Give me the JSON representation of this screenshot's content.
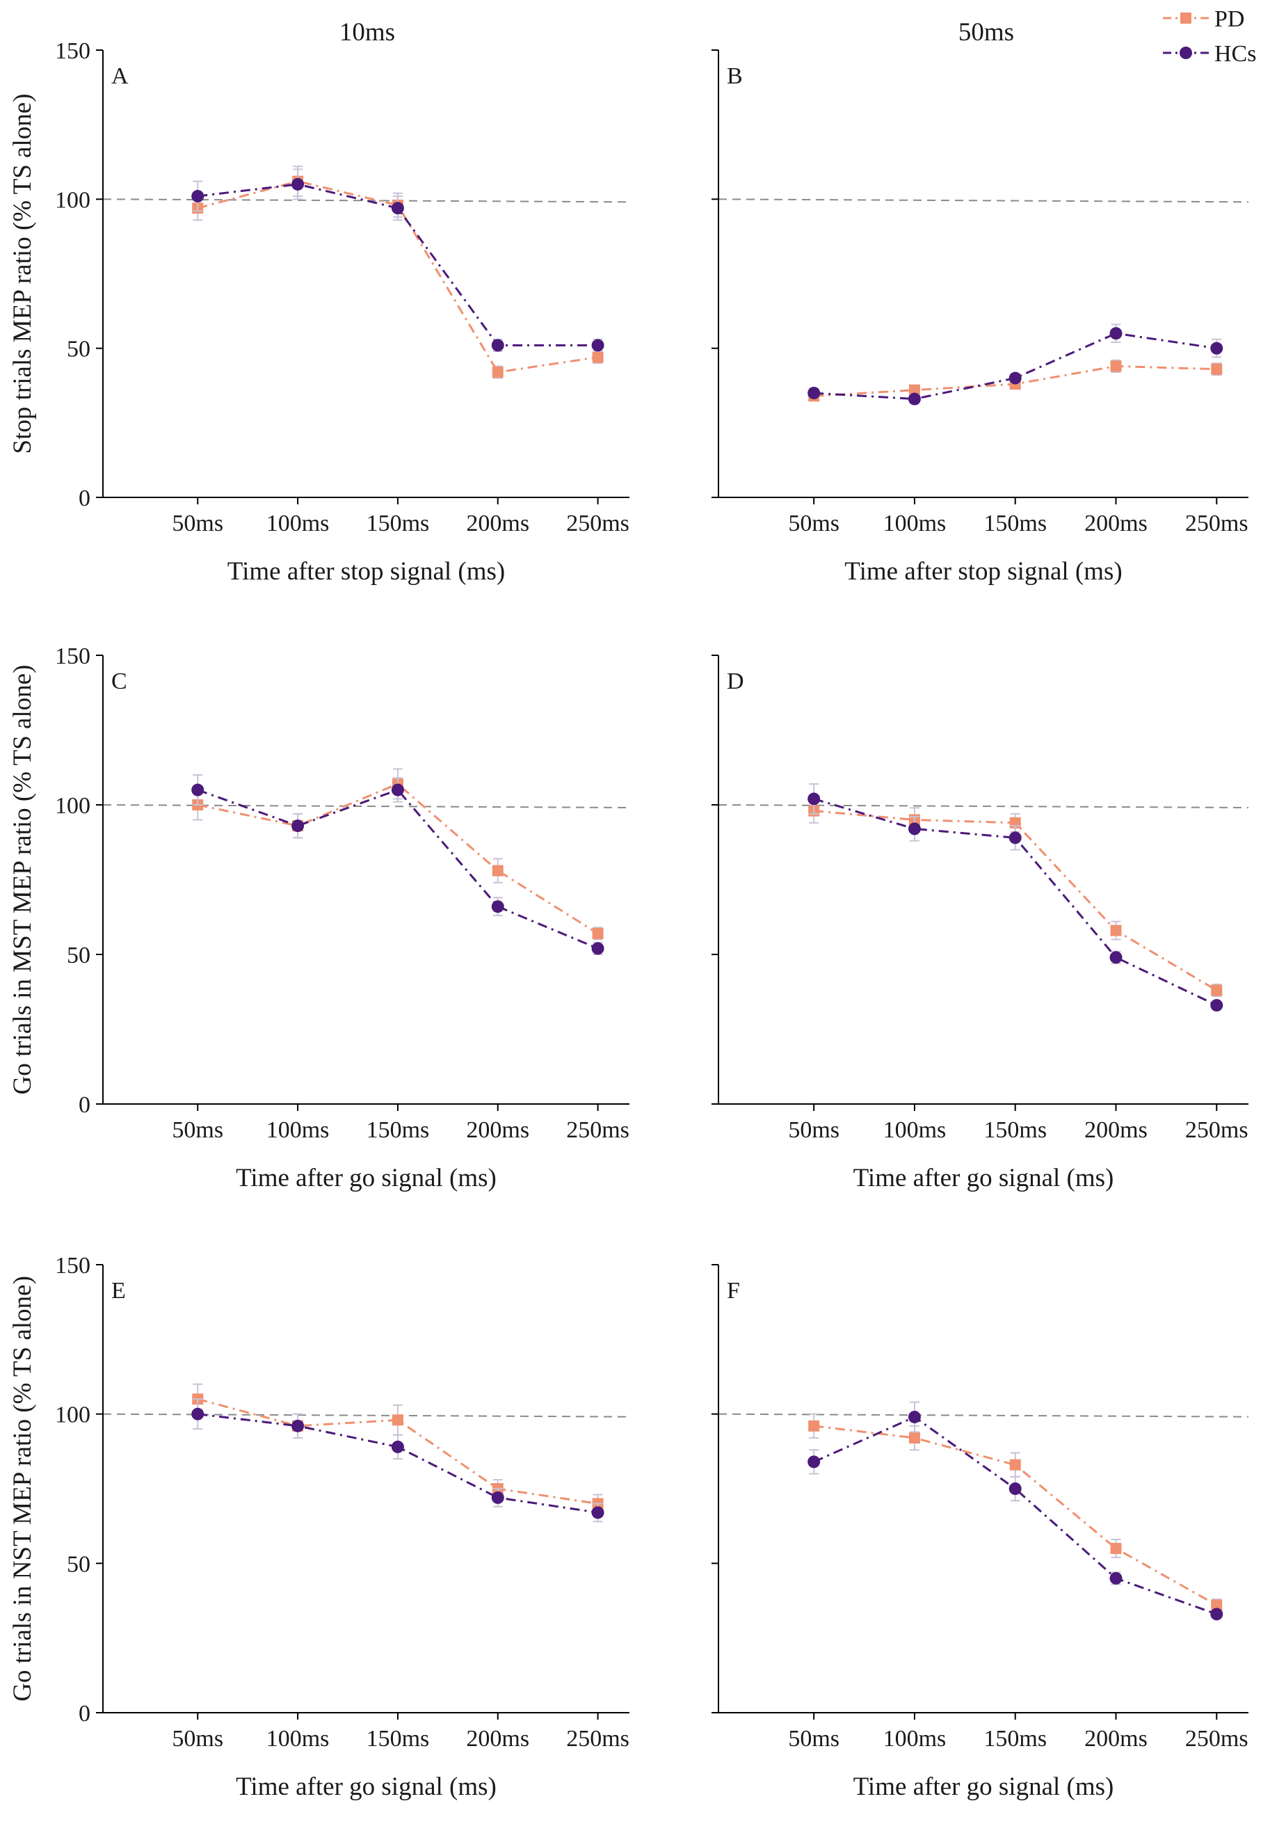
{
  "colors": {
    "pd": "#f0906e",
    "hcs": "#4b1a7a",
    "axis": "#000000",
    "reference": "#8a8a8a",
    "errorbar": "#c9c2d6"
  },
  "legend": [
    {
      "label": "PD",
      "series": "pd"
    },
    {
      "label": "HCs",
      "series": "hcs"
    }
  ],
  "column_titles": [
    "10ms",
    "50ms"
  ],
  "chart_data": [
    {
      "type": "line",
      "panel": "A",
      "title": "10ms",
      "categories": [
        "50ms",
        "100ms",
        "150ms",
        "200ms",
        "250ms"
      ],
      "xlabel": "Time after stop signal (ms)",
      "ylabel": "Stop trials MEP ratio (% TS alone)",
      "ylim": [
        0,
        150
      ],
      "yticks": [
        "0",
        "50",
        "100",
        "150"
      ],
      "reference_line": 100,
      "series": [
        {
          "name": "PD",
          "values": [
            97,
            106,
            98,
            42,
            47
          ],
          "errors": [
            4,
            5,
            4,
            2,
            2
          ]
        },
        {
          "name": "HCs",
          "values": [
            101,
            105,
            97,
            51,
            51
          ],
          "errors": [
            5,
            5,
            4,
            2,
            2
          ]
        }
      ]
    },
    {
      "type": "line",
      "panel": "B",
      "title": "50ms",
      "categories": [
        "50ms",
        "100ms",
        "150ms",
        "200ms",
        "250ms"
      ],
      "xlabel": "Time after stop signal (ms)",
      "ylabel": "",
      "ylim": [
        0,
        150
      ],
      "yticks": [],
      "reference_line": 100,
      "series": [
        {
          "name": "PD",
          "values": [
            34,
            36,
            38,
            44,
            43
          ],
          "errors": [
            1.5,
            1.5,
            1.5,
            2,
            2
          ]
        },
        {
          "name": "HCs",
          "values": [
            35,
            33,
            40,
            55,
            50
          ],
          "errors": [
            1.5,
            1.5,
            1.5,
            3,
            3
          ]
        }
      ]
    },
    {
      "type": "line",
      "panel": "C",
      "title": "",
      "categories": [
        "50ms",
        "100ms",
        "150ms",
        "200ms",
        "250ms"
      ],
      "xlabel": "Time after go signal (ms)",
      "ylabel": "Go trials in MST MEP ratio (% TS alone)",
      "ylim": [
        0,
        150
      ],
      "yticks": [
        "0",
        "50",
        "100",
        "150"
      ],
      "reference_line": 100,
      "series": [
        {
          "name": "PD",
          "values": [
            100,
            93,
            107,
            78,
            57
          ],
          "errors": [
            5,
            4,
            5,
            4,
            2
          ]
        },
        {
          "name": "HCs",
          "values": [
            105,
            93,
            105,
            66,
            52
          ],
          "errors": [
            5,
            4,
            4,
            3,
            2
          ]
        }
      ]
    },
    {
      "type": "line",
      "panel": "D",
      "title": "",
      "categories": [
        "50ms",
        "100ms",
        "150ms",
        "200ms",
        "250ms"
      ],
      "xlabel": "Time after go signal (ms)",
      "ylabel": "",
      "ylim": [
        0,
        150
      ],
      "yticks": [],
      "reference_line": 100,
      "series": [
        {
          "name": "PD",
          "values": [
            98,
            95,
            94,
            58,
            38
          ],
          "errors": [
            4,
            4,
            3,
            3,
            2
          ]
        },
        {
          "name": "HCs",
          "values": [
            102,
            92,
            89,
            49,
            33
          ],
          "errors": [
            5,
            4,
            4,
            2,
            1
          ]
        }
      ]
    },
    {
      "type": "line",
      "panel": "E",
      "title": "",
      "categories": [
        "50ms",
        "100ms",
        "150ms",
        "200ms",
        "250ms"
      ],
      "xlabel": "Time after go signal (ms)",
      "ylabel": "Go trials in NST MEP ratio (% TS alone)",
      "ylim": [
        0,
        150
      ],
      "yticks": [
        "0",
        "50",
        "100",
        "150"
      ],
      "reference_line": 100,
      "series": [
        {
          "name": "PD",
          "values": [
            105,
            96,
            98,
            75,
            70
          ],
          "errors": [
            5,
            4,
            5,
            3,
            3
          ]
        },
        {
          "name": "HCs",
          "values": [
            100,
            96,
            89,
            72,
            67
          ],
          "errors": [
            5,
            4,
            4,
            3,
            3
          ]
        }
      ]
    },
    {
      "type": "line",
      "panel": "F",
      "title": "",
      "categories": [
        "50ms",
        "100ms",
        "150ms",
        "200ms",
        "250ms"
      ],
      "xlabel": "Time after go signal (ms)",
      "ylabel": "",
      "ylim": [
        0,
        150
      ],
      "yticks": [],
      "reference_line": 100,
      "series": [
        {
          "name": "PD",
          "values": [
            96,
            92,
            83,
            55,
            36
          ],
          "errors": [
            4,
            4,
            4,
            3,
            2
          ]
        },
        {
          "name": "HCs",
          "values": [
            84,
            99,
            75,
            45,
            33
          ],
          "errors": [
            4,
            5,
            4,
            2,
            1
          ]
        }
      ]
    }
  ]
}
